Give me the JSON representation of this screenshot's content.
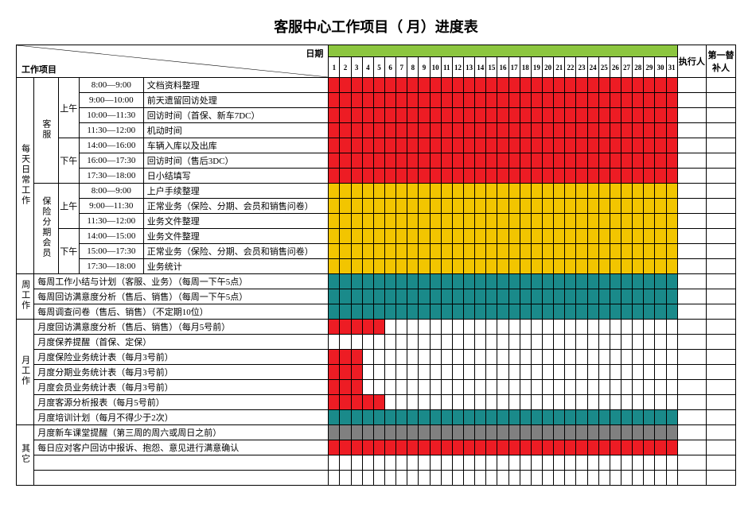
{
  "title": "客服中心工作项目（  月）进度表",
  "header": {
    "date_label": "日期",
    "project_label": "工作项目",
    "executor": "执行人",
    "substitute": "第一替补人"
  },
  "colors": {
    "green": "#8cc63f",
    "red": "#ed1c24",
    "yellow": "#f2c500",
    "teal": "#1a8a8a",
    "gray": "#808080",
    "white": "#ffffff"
  },
  "days": [
    1,
    2,
    3,
    4,
    5,
    6,
    7,
    8,
    9,
    10,
    11,
    12,
    13,
    14,
    15,
    16,
    17,
    18,
    19,
    20,
    21,
    22,
    23,
    24,
    25,
    26,
    27,
    28,
    29,
    30,
    31
  ],
  "sections": [
    {
      "group": "每天日常工作",
      "subgroups": [
        {
          "label": "客服",
          "periods": [
            {
              "label": "上午",
              "rows": [
                {
                  "time": "8:00—9:00",
                  "task": "文档资料整理",
                  "fill": "all_red"
                },
                {
                  "time": "9:00—10:00",
                  "task": "前天遗留回访处理",
                  "fill": "all_red"
                },
                {
                  "time": "10:00—11:30",
                  "task": "回访时间（首保、新车7DC）",
                  "fill": "all_red"
                },
                {
                  "time": "11:30—12:00",
                  "task": "机动时间",
                  "fill": "all_red"
                }
              ]
            },
            {
              "label": "下午",
              "rows": [
                {
                  "time": "14:00—16:00",
                  "task": "车辆入库以及出库",
                  "fill": "all_red"
                },
                {
                  "time": "16:00—17:30",
                  "task": "回访时间（售后3DC）",
                  "fill": "all_red"
                },
                {
                  "time": "17:30—18:00",
                  "task": "日小结填写",
                  "fill": "all_red"
                }
              ]
            }
          ]
        },
        {
          "label": "保险分期会员",
          "periods": [
            {
              "label": "上午",
              "rows": [
                {
                  "time": "8:00—9:00",
                  "task": "上户手续整理",
                  "fill": "all_yellow"
                },
                {
                  "time": "9:00—11:30",
                  "task": "正常业务（保险、分期、会员和销售问卷）",
                  "fill": "all_yellow"
                },
                {
                  "time": "11:30—12:00",
                  "task": "业务文件整理",
                  "fill": "all_yellow"
                }
              ]
            },
            {
              "label": "下午",
              "rows": [
                {
                  "time": "14:00—15:00",
                  "task": "业务文件整理",
                  "fill": "all_yellow"
                },
                {
                  "time": "15:00—17:30",
                  "task": "正常业务（保险、分期、会员和销售问卷）",
                  "fill": "all_yellow"
                },
                {
                  "time": "17:30—18:00",
                  "task": "业务统计",
                  "fill": "all_yellow"
                }
              ]
            }
          ]
        }
      ]
    }
  ],
  "weekly": {
    "group": "周工作",
    "rows": [
      {
        "task": "每周工作小结与计划（客服、业务）（每周一下午5点）",
        "fill": "all_teal"
      },
      {
        "task": "每周回访满意度分析（售后、销售）（每周一下午5点）",
        "fill": "all_teal"
      },
      {
        "task": "每周调查问卷（售后、销售）（不定期10位）",
        "fill": "all_teal"
      }
    ]
  },
  "monthly": {
    "group": "月工作",
    "rows": [
      {
        "task": "月度回访满意度分析（售后、销售）（每月5号前）",
        "fill": "d1_5"
      },
      {
        "task": "月度保养提醒（首保、定保）",
        "fill": "none"
      },
      {
        "task": "月度保险业务统计表（每月3号前）",
        "fill": "d1_3"
      },
      {
        "task": "月度分期业务统计表（每月3号前）",
        "fill": "d1_3"
      },
      {
        "task": "月度会员业务统计表（每月3号前）",
        "fill": "d1_3"
      },
      {
        "task": "月度客源分析报表（每月5号前）",
        "fill": "d1_5"
      },
      {
        "task": "月度培训计划（每月不得少于2次）",
        "fill": "all_teal"
      }
    ]
  },
  "other": {
    "group": "其它",
    "rows": [
      {
        "task": "月度新车课堂提醒（第三周的周六或周日之前）",
        "fill": "all_gray"
      },
      {
        "task": "每日应对客户回访中报诉、抱怨、意见进行满意确认",
        "fill": "all_red"
      },
      {
        "task": "",
        "fill": "none"
      },
      {
        "task": "",
        "fill": "none"
      }
    ]
  },
  "fill_patterns": {
    "all_red": {
      "color": "red",
      "days": "all"
    },
    "all_yellow": {
      "color": "yellow",
      "days": "all"
    },
    "all_teal": {
      "color": "teal",
      "days": "all"
    },
    "all_gray": {
      "color": "gray",
      "days": "all"
    },
    "d1_5": {
      "color": "red",
      "days": [
        1,
        2,
        3,
        4,
        5
      ]
    },
    "d1_3": {
      "color": "red",
      "days": [
        1,
        2,
        3
      ]
    },
    "none": {
      "color": "white",
      "days": []
    }
  }
}
